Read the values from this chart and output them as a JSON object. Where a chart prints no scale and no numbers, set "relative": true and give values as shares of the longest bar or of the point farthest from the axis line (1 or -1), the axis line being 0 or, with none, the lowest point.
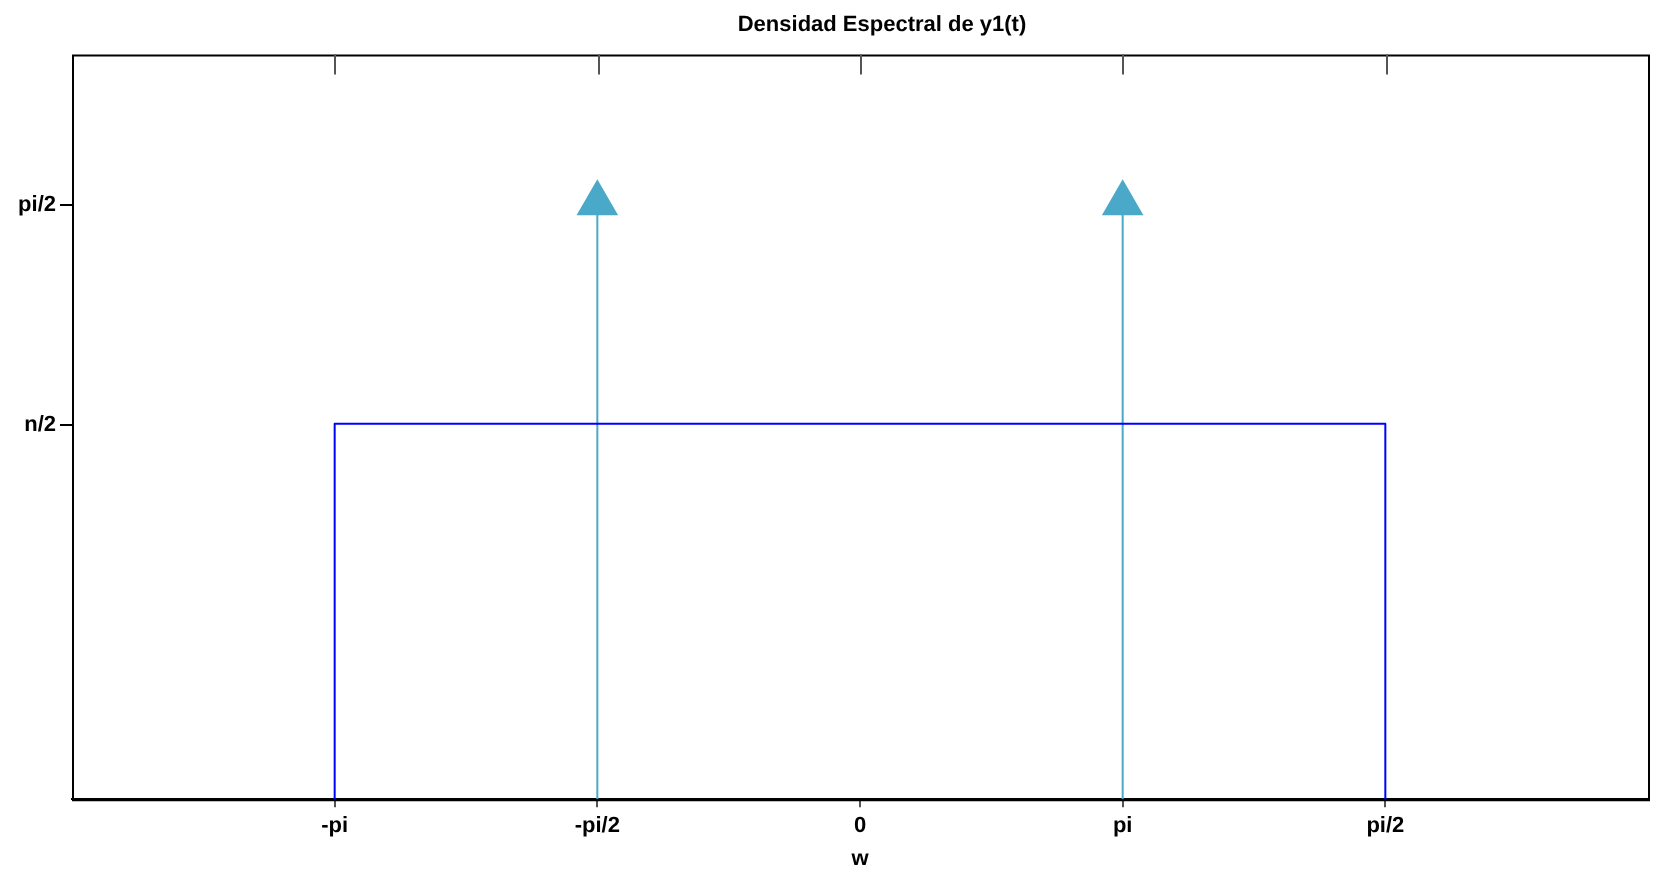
{
  "chart_data": {
    "type": "line",
    "title": "Densidad Espectral de y1(t)",
    "xlabel": "w",
    "relative": true,
    "categories": [
      null,
      "-pi",
      "-pi/2",
      "0",
      "pi",
      "pi/2",
      null
    ],
    "annotations": [
      "n/2",
      "pi/2"
    ],
    "grid": "x",
    "series": [
      {
        "x": [
          "-pi",
          "-pi",
          "pi/2",
          "pi/2"
        ],
        "values": [
          0,
          0.63,
          0.63,
          0
        ],
        "color": "#0000ff",
        "marker": "none"
      },
      {
        "type": "lollipop",
        "x": [
          "-pi/2",
          "pi"
        ],
        "values": [
          1,
          1
        ],
        "color": "#4aa8c8",
        "marker": "triangle"
      }
    ]
  }
}
